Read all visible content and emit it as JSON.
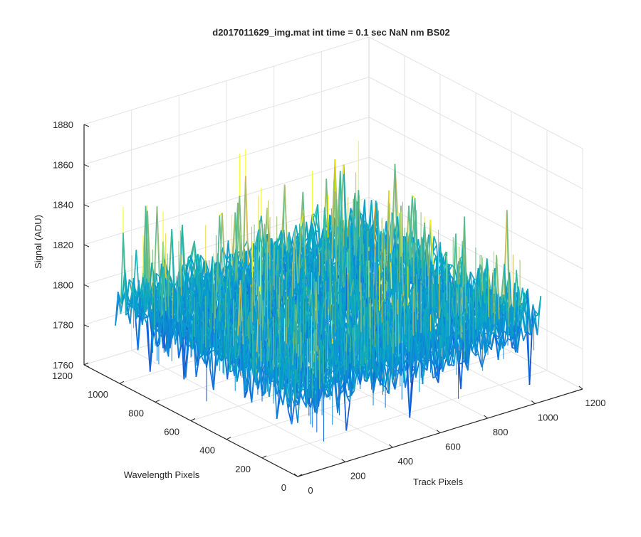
{
  "chart_data": {
    "type": "surface",
    "title": "d2017011629_img.mat int time = 0.1 sec  NaN nm BS02",
    "xlabel": "Track Pixels",
    "ylabel": "Wavelength Pixels",
    "zlabel": "Signal (ADU)",
    "xlim": [
      0,
      1200
    ],
    "ylim": [
      0,
      1200
    ],
    "zlim": [
      1760,
      1880
    ],
    "x_ticks": [
      "0",
      "200",
      "400",
      "600",
      "800",
      "1000",
      "1200"
    ],
    "y_ticks": [
      "0",
      "200",
      "400",
      "600",
      "800",
      "1000",
      "1200"
    ],
    "z_ticks": [
      "1760",
      "1780",
      "1800",
      "1820",
      "1840",
      "1860",
      "1880"
    ],
    "grid": true,
    "colormap": "parula",
    "surface_extent": {
      "x": [
        0,
        1024
      ],
      "y": [
        0,
        1024
      ]
    },
    "signal_typical_range": [
      1775,
      1835
    ],
    "signal_mean": 1800
  }
}
